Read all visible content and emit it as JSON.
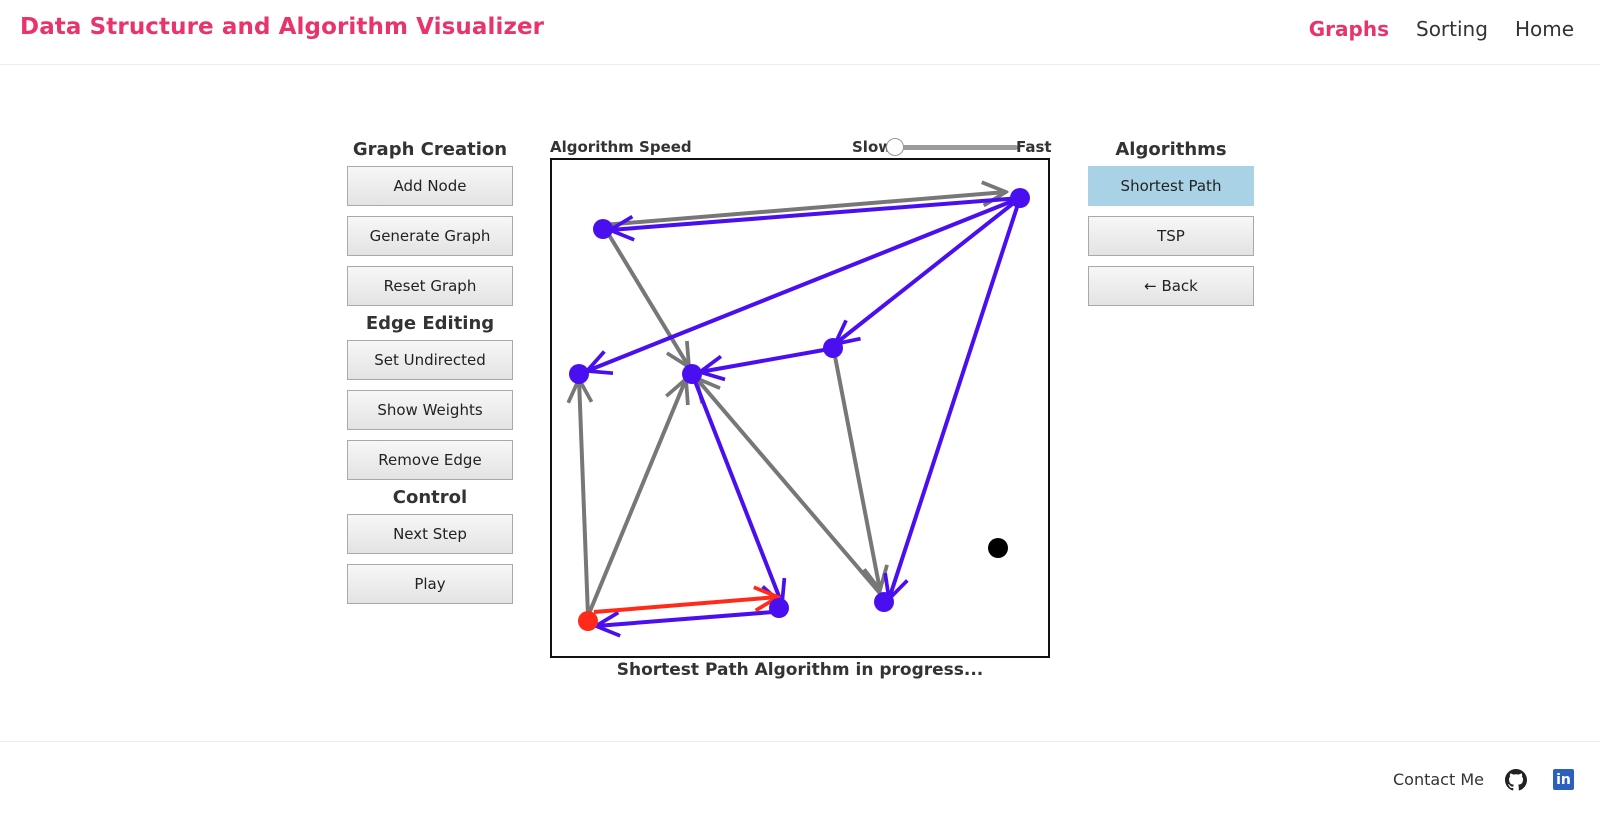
{
  "header": {
    "brand": "Data Structure and Algorithm Visualizer",
    "nav": [
      {
        "label": "Graphs",
        "active": true
      },
      {
        "label": "Sorting",
        "active": false
      },
      {
        "label": "Home",
        "active": false
      }
    ]
  },
  "left_panel": {
    "graph_creation_title": "Graph Creation",
    "add_node": "Add Node",
    "generate_graph": "Generate Graph",
    "reset_graph": "Reset Graph",
    "edge_editing_title": "Edge Editing",
    "set_undirected": "Set Undirected",
    "show_weights": "Show Weights",
    "remove_edge": "Remove Edge",
    "control_title": "Control",
    "next_step": "Next Step",
    "play": "Play"
  },
  "speed": {
    "label": "Algorithm Speed",
    "slow": "Slow",
    "fast": "Fast",
    "value": 0
  },
  "right_panel": {
    "title": "Algorithms",
    "shortest_path": "Shortest Path",
    "tsp": "TSP",
    "back": "← Back"
  },
  "status": "Shortest Path Algorithm in progress...",
  "footer": {
    "contact": "Contact Me",
    "linkedin_glyph": "in"
  },
  "colors": {
    "brand": "#e8336b",
    "visited": "#4a0ff0",
    "edge": "#777777",
    "source": "#ff2a1a",
    "selected_algorithm": "#a9d2e6",
    "unvisited_node": "#000000"
  },
  "icons": [
    "github-icon",
    "linkedin-icon"
  ]
}
